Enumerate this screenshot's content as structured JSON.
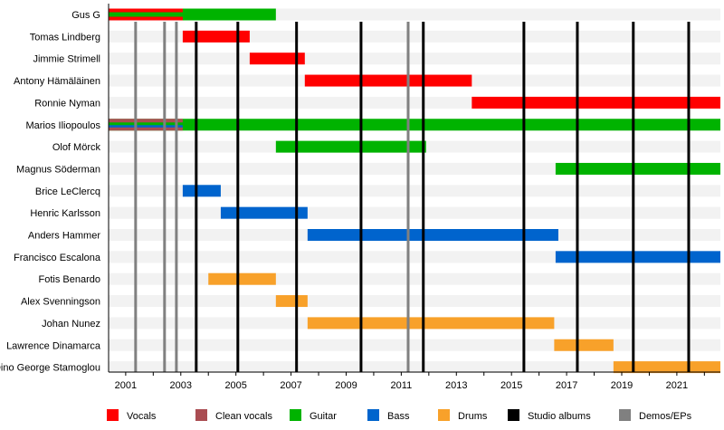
{
  "chart_data": {
    "type": "timeline",
    "title": "",
    "xlim": [
      2000.38,
      2022.58
    ],
    "x_ticks": [
      2001,
      2003,
      2005,
      2007,
      2009,
      2011,
      2013,
      2015,
      2017,
      2019,
      2021
    ],
    "colors": {
      "Vocals": "#ff0000",
      "Clean vocals": "#aa4d52",
      "Guitar": "#00b300",
      "Bass": "#0064cd",
      "Drums": "#f8a12a",
      "Studio albums": "#000000",
      "Demos/EPs": "#808080"
    },
    "members": [
      {
        "name": "Gus G",
        "spans": [
          {
            "role": "Guitar",
            "start": 2000.38,
            "end": 2006.45
          },
          {
            "role": "Vocals",
            "start": 2000.38,
            "end": 2003.07,
            "stripe": "outer"
          }
        ]
      },
      {
        "name": "Tomas Lindberg",
        "spans": [
          {
            "role": "Vocals",
            "start": 2003.07,
            "end": 2005.5
          }
        ]
      },
      {
        "name": "Jimmie Strimell",
        "spans": [
          {
            "role": "Vocals",
            "start": 2005.5,
            "end": 2007.5
          }
        ]
      },
      {
        "name": "Antony Hämäläinen",
        "spans": [
          {
            "role": "Vocals",
            "start": 2007.5,
            "end": 2013.56
          }
        ]
      },
      {
        "name": "Ronnie Nyman",
        "spans": [
          {
            "role": "Vocals",
            "start": 2013.56,
            "end": 2022.58
          }
        ]
      },
      {
        "name": "Marios Iliopoulos",
        "spans": [
          {
            "role": "Guitar",
            "start": 2000.38,
            "end": 2022.58
          },
          {
            "role": "Clean vocals",
            "start": 2000.38,
            "end": 2003.07,
            "stripe": "outer"
          },
          {
            "role": "Bass",
            "start": 2000.38,
            "end": 2003.07,
            "stripe": "inner"
          }
        ]
      },
      {
        "name": "Olof Mörck",
        "spans": [
          {
            "role": "Guitar",
            "start": 2006.45,
            "end": 2011.9
          }
        ]
      },
      {
        "name": "Magnus Söderman",
        "spans": [
          {
            "role": "Guitar",
            "start": 2016.6,
            "end": 2022.58
          }
        ]
      },
      {
        "name": "Brice LeClercq",
        "spans": [
          {
            "role": "Bass",
            "start": 2003.07,
            "end": 2004.45
          }
        ]
      },
      {
        "name": "Henric Karlsson",
        "spans": [
          {
            "role": "Bass",
            "start": 2004.45,
            "end": 2007.6
          }
        ]
      },
      {
        "name": "Anders Hammer",
        "spans": [
          {
            "role": "Bass",
            "start": 2007.6,
            "end": 2016.7
          }
        ]
      },
      {
        "name": "Francisco Escalona",
        "spans": [
          {
            "role": "Bass",
            "start": 2016.6,
            "end": 2022.58
          }
        ]
      },
      {
        "name": "Fotis Benardo",
        "spans": [
          {
            "role": "Drums",
            "start": 2004.0,
            "end": 2006.45
          }
        ]
      },
      {
        "name": "Alex Svenningson",
        "spans": [
          {
            "role": "Drums",
            "start": 2006.45,
            "end": 2007.6
          }
        ]
      },
      {
        "name": "Johan Nunez",
        "spans": [
          {
            "role": "Drums",
            "start": 2007.6,
            "end": 2016.55
          }
        ]
      },
      {
        "name": "Lawrence Dinamarca",
        "spans": [
          {
            "role": "Drums",
            "start": 2016.55,
            "end": 2018.7
          }
        ]
      },
      {
        "name": "Dino George Stamoglou",
        "spans": [
          {
            "role": "Drums",
            "start": 2018.7,
            "end": 2022.58
          }
        ]
      }
    ],
    "studio_albums": [
      2003.56,
      2005.07,
      2007.2,
      2009.54,
      2011.8,
      2015.45,
      2017.39,
      2019.42,
      2021.43
    ],
    "demos_eps": [
      2001.36,
      2002.41,
      2002.84,
      2011.25
    ],
    "legend": [
      "Vocals",
      "Clean vocals",
      "Guitar",
      "Bass",
      "Drums",
      "Studio albums",
      "Demos/EPs"
    ],
    "legend_placement": "bottom"
  }
}
